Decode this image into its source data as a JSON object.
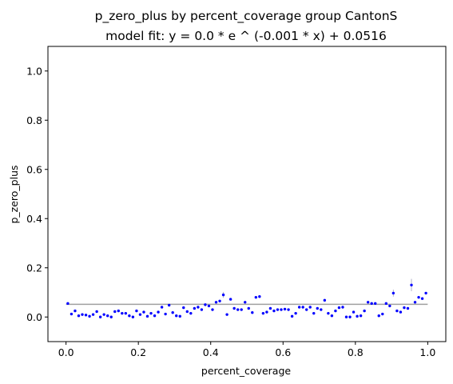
{
  "chart_data": {
    "type": "scatter",
    "title": "p_zero_plus by percent_coverage group CantonS",
    "subtitle": "model fit: y = 0.0 * e ^ (-0.001 * x) + 0.0516",
    "xlabel": "percent_coverage",
    "ylabel": "p_zero_plus",
    "xlim": [
      -0.05,
      1.05
    ],
    "ylim": [
      -0.1,
      1.1
    ],
    "xticks": [
      0.0,
      0.2,
      0.4,
      0.6,
      0.8,
      1.0
    ],
    "xtick_labels": [
      "0.0",
      "0.2",
      "0.4",
      "0.6",
      "0.8",
      "1.0"
    ],
    "yticks": [
      0.0,
      0.2,
      0.4,
      0.6,
      0.8,
      1.0
    ],
    "ytick_labels": [
      "0.0",
      "0.2",
      "0.4",
      "0.6",
      "0.8",
      "1.0"
    ],
    "grid": false,
    "colors": {
      "points": "#0000ff",
      "fit_line": "#a0a0a0",
      "error_bars": "#b0b0c8"
    },
    "fit": {
      "a": 0.0,
      "b": -0.001,
      "c": 0.0516,
      "x_range": [
        0.0,
        1.0
      ]
    },
    "series": [
      {
        "x": [
          0.005,
          0.015,
          0.025,
          0.035,
          0.045,
          0.055,
          0.065,
          0.075,
          0.085,
          0.095,
          0.105,
          0.115,
          0.125,
          0.135,
          0.145,
          0.155,
          0.165,
          0.175,
          0.185,
          0.195,
          0.205,
          0.215,
          0.225,
          0.235,
          0.245,
          0.255,
          0.265,
          0.275,
          0.285,
          0.295,
          0.305,
          0.315,
          0.325,
          0.335,
          0.345,
          0.355,
          0.365,
          0.375,
          0.385,
          0.395,
          0.405,
          0.415,
          0.425,
          0.435,
          0.445,
          0.455,
          0.465,
          0.475,
          0.485,
          0.495,
          0.505,
          0.515,
          0.525,
          0.535,
          0.545,
          0.555,
          0.565,
          0.575,
          0.585,
          0.595,
          0.605,
          0.615,
          0.625,
          0.635,
          0.645,
          0.655,
          0.665,
          0.675,
          0.685,
          0.695,
          0.705,
          0.715,
          0.725,
          0.735,
          0.745,
          0.755,
          0.765,
          0.775,
          0.785,
          0.795,
          0.805,
          0.815,
          0.825,
          0.835,
          0.845,
          0.855,
          0.865,
          0.875,
          0.885,
          0.895,
          0.905,
          0.915,
          0.925,
          0.935,
          0.945,
          0.955,
          0.965,
          0.975,
          0.985,
          0.995
        ],
        "y": [
          0.055,
          0.012,
          0.025,
          0.005,
          0.01,
          0.008,
          0.003,
          0.01,
          0.022,
          0.0,
          0.01,
          0.005,
          0.0,
          0.022,
          0.025,
          0.015,
          0.015,
          0.005,
          0.0,
          0.025,
          0.01,
          0.02,
          0.003,
          0.015,
          0.005,
          0.02,
          0.04,
          0.012,
          0.048,
          0.018,
          0.005,
          0.003,
          0.038,
          0.022,
          0.015,
          0.035,
          0.04,
          0.03,
          0.05,
          0.045,
          0.03,
          0.06,
          0.065,
          0.09,
          0.01,
          0.072,
          0.035,
          0.03,
          0.03,
          0.06,
          0.035,
          0.018,
          0.08,
          0.083,
          0.015,
          0.02,
          0.035,
          0.025,
          0.03,
          0.03,
          0.032,
          0.03,
          0.003,
          0.015,
          0.04,
          0.04,
          0.03,
          0.04,
          0.015,
          0.035,
          0.03,
          0.068,
          0.015,
          0.005,
          0.025,
          0.038,
          0.04,
          0.0,
          0.0,
          0.02,
          0.003,
          0.005,
          0.025,
          0.06,
          0.055,
          0.055,
          0.005,
          0.012,
          0.055,
          0.045,
          0.097,
          0.025,
          0.02,
          0.038,
          0.035,
          0.13,
          0.06,
          0.08,
          0.075,
          0.097
        ],
        "err": [
          0.0,
          0.0,
          0.0,
          0.0,
          0.0,
          0.0,
          0.0,
          0.0,
          0.0,
          0.0,
          0.0,
          0.0,
          0.0,
          0.0,
          0.0,
          0.0,
          0.0,
          0.0,
          0.0,
          0.0,
          0.0,
          0.0,
          0.0,
          0.0,
          0.0,
          0.0,
          0.0,
          0.0,
          0.0,
          0.0,
          0.0,
          0.0,
          0.0,
          0.0,
          0.0,
          0.0,
          0.0,
          0.0,
          0.0,
          0.0,
          0.0,
          0.0,
          0.0,
          0.012,
          0.0,
          0.0,
          0.0,
          0.0,
          0.0,
          0.0,
          0.0,
          0.0,
          0.0,
          0.0,
          0.0,
          0.0,
          0.0,
          0.0,
          0.0,
          0.0,
          0.0,
          0.0,
          0.0,
          0.0,
          0.0,
          0.0,
          0.0,
          0.0,
          0.0,
          0.0,
          0.0,
          0.0,
          0.0,
          0.0,
          0.0,
          0.0,
          0.0,
          0.0,
          0.0,
          0.0,
          0.0,
          0.0,
          0.0,
          0.0,
          0.0,
          0.0,
          0.0,
          0.0,
          0.0,
          0.0,
          0.014,
          0.0,
          0.0,
          0.0,
          0.0,
          0.025,
          0.0,
          0.0,
          0.0,
          0.0
        ]
      }
    ]
  }
}
